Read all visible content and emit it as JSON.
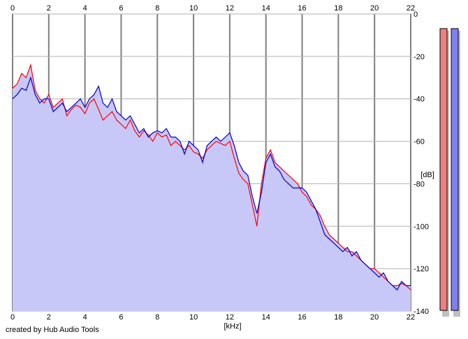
{
  "footer": {
    "credit": "created by Hub Audio Tools"
  },
  "chart_data": {
    "type": "line",
    "xlabel": "[kHz]",
    "ylabel": "[dB]",
    "xlim": [
      0,
      22
    ],
    "ylim": [
      -140,
      0
    ],
    "x_ticks": [
      0,
      2,
      4,
      6,
      8,
      10,
      12,
      14,
      16,
      18,
      20,
      22
    ],
    "x_tick_labels": [
      "0",
      "2",
      "4",
      "6",
      "8",
      "10",
      "12",
      "14",
      "16",
      "18",
      "20",
      "22"
    ],
    "y_ticks": [
      0,
      -20,
      -40,
      -60,
      -80,
      -100,
      -120,
      -140
    ],
    "y_tick_labels": [
      "0",
      "-20",
      "-40",
      "-60",
      "-80",
      "-100",
      "-120",
      "-140"
    ],
    "grid": true,
    "fill_color": "#c8c8f8",
    "series": [
      {
        "color": "#ff0000",
        "x": [
          0.0,
          0.25,
          0.5,
          0.75,
          1.0,
          1.25,
          1.5,
          1.75,
          2.0,
          2.25,
          2.5,
          2.75,
          3.0,
          3.25,
          3.5,
          3.75,
          4.0,
          4.25,
          4.5,
          4.75,
          5.0,
          5.25,
          5.5,
          5.75,
          6.0,
          6.25,
          6.5,
          6.75,
          7.0,
          7.25,
          7.5,
          7.75,
          8.0,
          8.25,
          8.5,
          8.75,
          9.0,
          9.25,
          9.5,
          9.75,
          10.0,
          10.25,
          10.5,
          10.75,
          11.0,
          11.25,
          11.5,
          11.75,
          12.0,
          12.25,
          12.5,
          12.75,
          13.0,
          13.25,
          13.5,
          13.75,
          14.0,
          14.25,
          14.5,
          14.75,
          15.0,
          15.25,
          15.5,
          15.75,
          16.0,
          16.25,
          16.5,
          16.75,
          17.0,
          17.25,
          17.5,
          17.75,
          18.0,
          18.25,
          18.5,
          18.75,
          19.0,
          19.25,
          19.5,
          19.75,
          20.0,
          20.25,
          20.5,
          20.75,
          21.0,
          21.25,
          21.5,
          21.75,
          22.0
        ],
        "y": [
          -35,
          -33,
          -28,
          -30,
          -24,
          -36,
          -40,
          -42,
          -38,
          -44,
          -42,
          -40,
          -48,
          -45,
          -43,
          -44,
          -47,
          -42,
          -40,
          -45,
          -50,
          -48,
          -46,
          -50,
          -52,
          -54,
          -50,
          -55,
          -58,
          -55,
          -57,
          -60,
          -56,
          -58,
          -57,
          -62,
          -60,
          -62,
          -64,
          -62,
          -65,
          -66,
          -68,
          -64,
          -62,
          -60,
          -61,
          -62,
          -60,
          -68,
          -75,
          -78,
          -80,
          -90,
          -100,
          -80,
          -68,
          -64,
          -70,
          -72,
          -74,
          -76,
          -78,
          -80,
          -84,
          -86,
          -90,
          -92,
          -95,
          -100,
          -104,
          -106,
          -108,
          -110,
          -112,
          -112,
          -114,
          -116,
          -118,
          -120,
          -120,
          -122,
          -124,
          -126,
          -128,
          -128,
          -127,
          -128,
          -130
        ]
      },
      {
        "color": "#0000cc",
        "x": [
          0.0,
          0.25,
          0.5,
          0.75,
          1.0,
          1.25,
          1.5,
          1.75,
          2.0,
          2.25,
          2.5,
          2.75,
          3.0,
          3.25,
          3.5,
          3.75,
          4.0,
          4.25,
          4.5,
          4.75,
          5.0,
          5.25,
          5.5,
          5.75,
          6.0,
          6.25,
          6.5,
          6.75,
          7.0,
          7.25,
          7.5,
          7.75,
          8.0,
          8.25,
          8.5,
          8.75,
          9.0,
          9.25,
          9.5,
          9.75,
          10.0,
          10.25,
          10.5,
          10.75,
          11.0,
          11.25,
          11.5,
          11.75,
          12.0,
          12.25,
          12.5,
          12.75,
          13.0,
          13.25,
          13.5,
          13.75,
          14.0,
          14.25,
          14.5,
          14.75,
          15.0,
          15.25,
          15.5,
          15.75,
          16.0,
          16.25,
          16.5,
          16.75,
          17.0,
          17.25,
          17.5,
          17.75,
          18.0,
          18.25,
          18.5,
          18.75,
          19.0,
          19.25,
          19.5,
          19.75,
          20.0,
          20.25,
          20.5,
          20.75,
          21.0,
          21.25,
          21.5,
          21.75,
          22.0
        ],
        "y": [
          -40,
          -38,
          -35,
          -36,
          -30,
          -38,
          -42,
          -40,
          -40,
          -46,
          -44,
          -42,
          -46,
          -44,
          -42,
          -40,
          -44,
          -40,
          -38,
          -34,
          -42,
          -44,
          -40,
          -46,
          -48,
          -50,
          -48,
          -52,
          -56,
          -54,
          -58,
          -56,
          -55,
          -56,
          -54,
          -58,
          -58,
          -60,
          -66,
          -60,
          -62,
          -64,
          -70,
          -62,
          -60,
          -58,
          -60,
          -58,
          -56,
          -62,
          -70,
          -74,
          -76,
          -86,
          -94,
          -84,
          -70,
          -66,
          -72,
          -74,
          -78,
          -80,
          -82,
          -82,
          -82,
          -84,
          -88,
          -92,
          -98,
          -104,
          -106,
          -108,
          -110,
          -112,
          -110,
          -114,
          -112,
          -116,
          -118,
          -120,
          -122,
          -124,
          -122,
          -126,
          -128,
          -130,
          -126,
          -128,
          -128
        ]
      }
    ]
  }
}
